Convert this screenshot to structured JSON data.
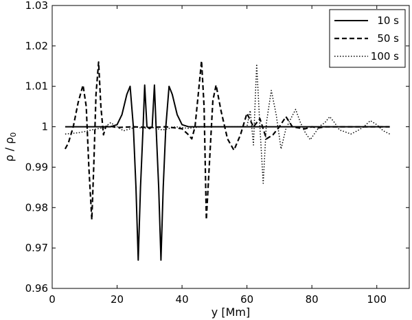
{
  "chart_data": {
    "type": "line",
    "xlabel": "y [Mm]",
    "ylabel": {
      "main": "ρ / ρ",
      "subscript": "0"
    },
    "xlim": [
      0,
      110
    ],
    "ylim": [
      0.96,
      1.03
    ],
    "x_ticks": [
      0,
      20,
      40,
      60,
      80,
      100
    ],
    "x_tick_labels": [
      "0",
      "20",
      "40",
      "60",
      "80",
      "100"
    ],
    "y_ticks": [
      0.96,
      0.97,
      0.98,
      0.99,
      1.0,
      1.01,
      1.02,
      1.03
    ],
    "y_tick_labels": [
      "0.96",
      "0.97",
      "0.98",
      "0.99",
      "1",
      "1.01",
      "1.02",
      "1.03"
    ],
    "grid": false,
    "legend_position": "top-right",
    "series": [
      {
        "name": "10 s",
        "style": "solid",
        "color": "#000000",
        "x": [
          4,
          18,
          20,
          21.5,
          23,
          24,
          25,
          25.8,
          26.5,
          27.2,
          28,
          28.5,
          29.2,
          30,
          30.8,
          31.5,
          32,
          32.8,
          33.5,
          34.2,
          35,
          36,
          37,
          38.5,
          40,
          42,
          104
        ],
        "y": [
          1.0,
          1.0,
          1.0005,
          1.003,
          1.008,
          1.01,
          1.0,
          0.985,
          0.967,
          0.985,
          1.0,
          1.0103,
          1.0,
          0.9995,
          1.0,
          1.0103,
          1.0,
          0.985,
          0.967,
          0.985,
          1.0,
          1.01,
          1.008,
          1.003,
          1.0005,
          1.0,
          1.0
        ]
      },
      {
        "name": "50 s",
        "style": "dashed",
        "color": "#000000",
        "x": [
          4,
          5,
          6.5,
          8,
          9.5,
          10.5,
          11.3,
          12.2,
          12.8,
          13.5,
          14.3,
          15,
          15.8,
          16.5,
          17.5,
          20,
          25,
          30,
          35,
          40,
          42,
          43,
          44,
          45,
          46,
          46.8,
          47.5,
          48.5,
          49.5,
          50.5,
          52,
          54,
          56,
          58,
          60,
          62,
          64,
          66,
          68,
          70,
          72,
          74,
          76,
          78,
          80,
          82,
          84,
          86,
          88,
          90,
          95,
          100,
          104
        ],
        "y": [
          0.9945,
          0.996,
          1.0,
          1.006,
          1.0103,
          1.005,
          0.99,
          0.977,
          0.99,
          1.008,
          1.016,
          1.005,
          0.998,
          1.0,
          1.0002,
          0.9998,
          1.0,
          0.9998,
          1.0,
          0.9995,
          0.998,
          0.997,
          1.0,
          1.008,
          1.0163,
          1.005,
          0.977,
          0.992,
          1.0065,
          1.0103,
          1.004,
          0.997,
          0.9942,
          0.998,
          1.0033,
          1.0,
          1.002,
          0.997,
          0.998,
          1.0,
          1.0025,
          1.0,
          0.9997,
          0.9995,
          1.0,
          0.9997,
          1.0,
          1.0,
          1.0,
          1.0,
          1.0,
          1.0,
          1.0
        ]
      },
      {
        "name": "100 s",
        "style": "dotted",
        "color": "#000000",
        "x": [
          4,
          8,
          10,
          12,
          14,
          16,
          18,
          20,
          22,
          24,
          26,
          28,
          30,
          34,
          38,
          42,
          46,
          50,
          54,
          58,
          60,
          61,
          62,
          63,
          64,
          65,
          66,
          67.5,
          69,
          70.5,
          72,
          73.5,
          75,
          76.5,
          78,
          79.5,
          81,
          82.5,
          84,
          85.5,
          87,
          88.5,
          90,
          92,
          94,
          96,
          98,
          100,
          102,
          104
        ],
        "y": [
          0.9982,
          0.9985,
          0.9988,
          0.9992,
          0.9995,
          0.9998,
          1.001,
          1.0,
          0.999,
          0.9995,
          1.0,
          0.9995,
          1.0,
          0.9992,
          1.0,
          0.9996,
          1.0,
          1.0,
          1.0,
          1.0,
          1.0,
          1.004,
          0.9955,
          1.0155,
          1.0,
          0.986,
          1.001,
          1.009,
          1.003,
          0.9945,
          0.9995,
          1.002,
          1.0043,
          1.001,
          0.9985,
          0.9968,
          0.9985,
          1.0002,
          1.001,
          1.0025,
          1.001,
          0.9992,
          0.9988,
          0.9982,
          0.999,
          1.0,
          1.0015,
          1.0005,
          0.999,
          0.9982
        ]
      }
    ]
  }
}
